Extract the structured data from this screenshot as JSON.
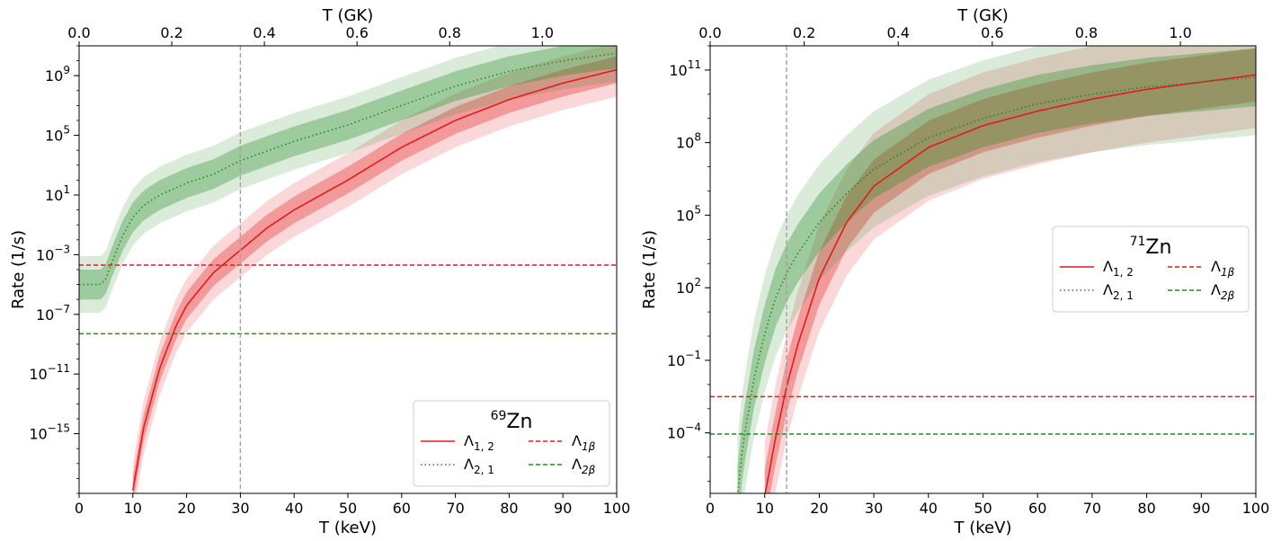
{
  "chart_data": [
    {
      "type": "line",
      "panel": "left",
      "nucleus": {
        "mass": "69",
        "element": "Zn"
      },
      "xlabel": "T (keV)",
      "ylabel": "Rate (1/s)",
      "top_xlabel": "T (GK)",
      "xlim": [
        0,
        100
      ],
      "top_xlim": [
        0.0,
        1.1605
      ],
      "ylim_log10": [
        -19,
        11
      ],
      "x_ticks": [
        "0",
        "10",
        "20",
        "30",
        "40",
        "50",
        "60",
        "70",
        "80",
        "90",
        "100"
      ],
      "x_tick_values": [
        0,
        10,
        20,
        30,
        40,
        50,
        60,
        70,
        80,
        90,
        100
      ],
      "top_ticks": [
        "0.0",
        "0.2",
        "0.4",
        "0.6",
        "0.8",
        "1.0"
      ],
      "top_tick_values": [
        0.0,
        0.2,
        0.4,
        0.6,
        0.8,
        1.0
      ],
      "y_ticks": [
        {
          "exp": 9,
          "label": "10",
          "sup": "9"
        },
        {
          "exp": 5,
          "label": "10",
          "sup": "5"
        },
        {
          "exp": 1,
          "label": "10",
          "sup": "1"
        },
        {
          "exp": -3,
          "label": "10",
          "sup": "−3"
        },
        {
          "exp": -7,
          "label": "10",
          "sup": "−7"
        },
        {
          "exp": -11,
          "label": "10",
          "sup": "−11"
        },
        {
          "exp": -15,
          "label": "10",
          "sup": "−15"
        }
      ],
      "vline_keV": 30,
      "series": [
        {
          "name": "Λ_{1,2}",
          "color": "#e41a1c",
          "style": "solid",
          "x": [
            10,
            12,
            15,
            18,
            20,
            25,
            30,
            35,
            40,
            50,
            60,
            70,
            80,
            90,
            100
          ],
          "log10": [
            -18.8,
            -14.6,
            -10.6,
            -7.8,
            -6.4,
            -4.2,
            -2.7,
            -1.2,
            0.0,
            2.0,
            4.2,
            6.0,
            7.4,
            8.5,
            9.4
          ],
          "band_inner": 0.9,
          "band_outer": 1.8
        },
        {
          "name": "Λ_{2,1}",
          "color": "#228B22",
          "style": "dotted",
          "x": [
            0,
            4,
            5,
            6,
            8,
            10,
            12,
            15,
            20,
            25,
            30,
            40,
            50,
            60,
            70,
            80,
            90,
            100
          ],
          "log10": [
            -5.0,
            -5.0,
            -4.6,
            -3.6,
            -1.8,
            -0.5,
            0.3,
            1.0,
            1.8,
            2.4,
            3.3,
            4.6,
            5.7,
            7.0,
            8.3,
            9.3,
            10.0,
            10.5
          ],
          "band_inner": 1.0,
          "band_outer": 1.9
        },
        {
          "name": "Λ_{1β}",
          "color": "#e41a1c",
          "style": "dashed",
          "constant_log10": -3.7
        },
        {
          "name": "Λ_{2β}",
          "color": "#228B22",
          "style": "dashed",
          "constant_log10": -8.3
        }
      ],
      "legend": {
        "placement": "lower-right",
        "title": {
          "mass": "69",
          "element": "Zn"
        },
        "entries": [
          {
            "base": "Λ",
            "sub": "1, 2",
            "italic": false
          },
          {
            "base": "Λ",
            "sub": "1β",
            "italic": true
          },
          {
            "base": "Λ",
            "sub": "2, 1",
            "italic": false
          },
          {
            "base": "Λ",
            "sub": "2β",
            "italic": true
          }
        ]
      }
    },
    {
      "type": "line",
      "panel": "right",
      "nucleus": {
        "mass": "71",
        "element": "Zn"
      },
      "xlabel": "T (keV)",
      "ylabel": "Rate (1/s)",
      "top_xlabel": "T (GK)",
      "xlim": [
        0,
        100
      ],
      "top_xlim": [
        0.0,
        1.1605
      ],
      "ylim_log10": [
        -6.5,
        12
      ],
      "x_ticks": [
        "0",
        "10",
        "20",
        "30",
        "40",
        "50",
        "60",
        "70",
        "80",
        "90",
        "100"
      ],
      "x_tick_values": [
        0,
        10,
        20,
        30,
        40,
        50,
        60,
        70,
        80,
        90,
        100
      ],
      "top_ticks": [
        "0.0",
        "0.2",
        "0.4",
        "0.6",
        "0.8",
        "1.0"
      ],
      "top_tick_values": [
        0.0,
        0.2,
        0.4,
        0.6,
        0.8,
        1.0
      ],
      "y_ticks": [
        {
          "exp": 11,
          "label": "10",
          "sup": "11"
        },
        {
          "exp": 8,
          "label": "10",
          "sup": "8"
        },
        {
          "exp": 5,
          "label": "10",
          "sup": "5"
        },
        {
          "exp": 2,
          "label": "10",
          "sup": "2"
        },
        {
          "exp": -1,
          "label": "10",
          "sup": "−1"
        },
        {
          "exp": -4,
          "label": "10",
          "sup": "−4"
        }
      ],
      "vline_keV": 14,
      "series": [
        {
          "name": "Λ_{1,2}",
          "color": "#e41a1c",
          "style": "solid",
          "x": [
            10,
            12,
            14,
            16,
            18,
            20,
            25,
            30,
            40,
            50,
            60,
            70,
            80,
            90,
            100
          ],
          "log10": [
            -6.6,
            -4.2,
            -2.1,
            -0.4,
            1.0,
            2.4,
            4.7,
            6.2,
            7.8,
            8.7,
            9.3,
            9.8,
            10.2,
            10.5,
            10.8
          ],
          "band_inner": 1.1,
          "band_outer": 2.2
        },
        {
          "name": "Λ_{2,1}",
          "color": "#228B22",
          "style": "dotted",
          "x": [
            5,
            6,
            8,
            10,
            12,
            14,
            16,
            20,
            25,
            30,
            40,
            50,
            60,
            70,
            80,
            90,
            100
          ],
          "log10": [
            -6.6,
            -4.5,
            -1.8,
            0.1,
            1.6,
            2.6,
            3.4,
            4.7,
            5.9,
            6.9,
            8.2,
            9.0,
            9.6,
            10.0,
            10.3,
            10.5,
            10.7
          ],
          "band_inner": 1.2,
          "band_outer": 2.4
        },
        {
          "name": "Λ_{1β}",
          "color": "#e41a1c",
          "style": "dashed",
          "constant_log10": -2.5
        },
        {
          "name": "Λ_{2β}",
          "color": "#228B22",
          "style": "dashed",
          "constant_log10": -4.05
        }
      ],
      "legend": {
        "placement": "center-right",
        "title": {
          "mass": "71",
          "element": "Zn"
        },
        "entries": [
          {
            "base": "Λ",
            "sub": "1, 2",
            "italic": false
          },
          {
            "base": "Λ",
            "sub": "1β",
            "italic": true
          },
          {
            "base": "Λ",
            "sub": "2, 1",
            "italic": false
          },
          {
            "base": "Λ",
            "sub": "2β",
            "italic": true
          }
        ]
      }
    }
  ]
}
